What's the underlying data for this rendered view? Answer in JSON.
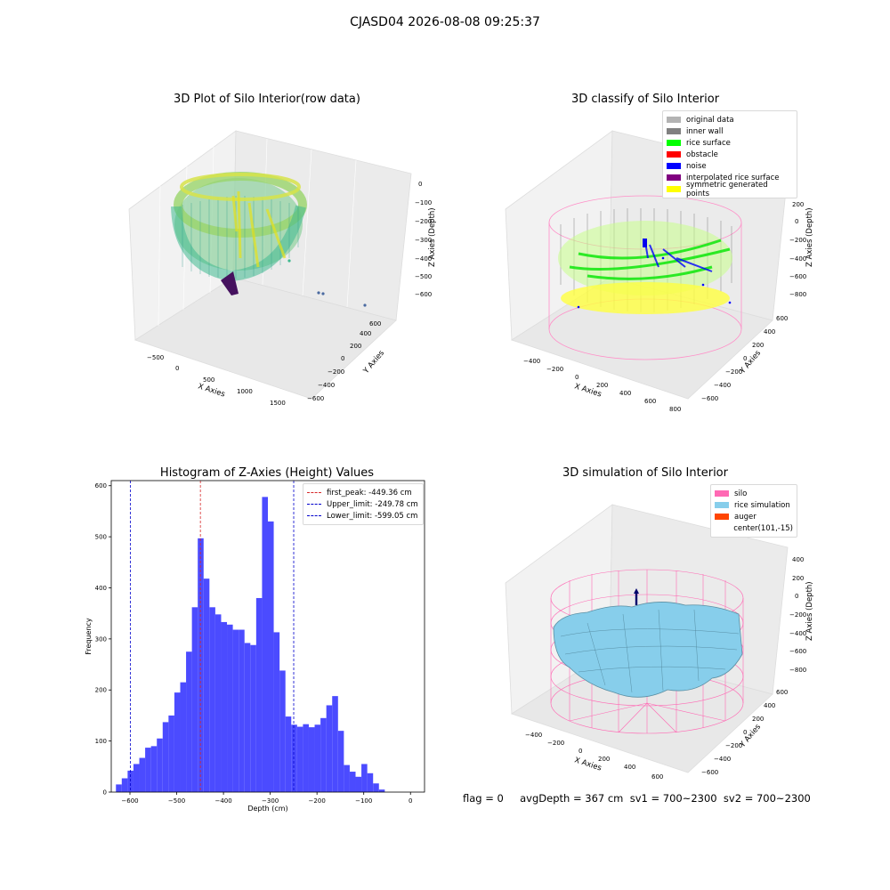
{
  "suptitle": "CJASD04 2026-08-08 09:25:37",
  "panels": {
    "raw": {
      "title": "3D Plot of Silo Interior(row data)",
      "xlabel": "X Axies",
      "ylabel": "Y Axies",
      "zlabel": "Z Axies (Depth)",
      "xticks": [
        "−500",
        "0",
        "500",
        "1000",
        "1500"
      ],
      "yticks": [
        "600",
        "400",
        "200",
        "0",
        "−200",
        "−400",
        "−600"
      ],
      "zticks": [
        "0",
        "−100",
        "−200",
        "−300",
        "−400",
        "−500",
        "−600"
      ]
    },
    "classify": {
      "title": "3D classify of Silo Interior",
      "xlabel": "X Axies",
      "ylabel": "Y Axies",
      "zlabel": "Z Axies (Depth)",
      "xticks": [
        "−400",
        "−200",
        "0",
        "200",
        "400",
        "600",
        "800"
      ],
      "yticks": [
        "600",
        "400",
        "200",
        "0",
        "−200",
        "−400",
        "−600"
      ],
      "zticks": [
        "200",
        "0",
        "−200",
        "−400",
        "−600",
        "−800"
      ],
      "legend": [
        {
          "label": "original data",
          "color": "#b3b3b3"
        },
        {
          "label": "inner wall",
          "color": "#808080"
        },
        {
          "label": "rice surface",
          "color": "#00ff00"
        },
        {
          "label": "obstacle",
          "color": "#ff0000"
        },
        {
          "label": "noise",
          "color": "#0000ff"
        },
        {
          "label": "interpolated rice surface",
          "color": "#800080"
        },
        {
          "label": "symmetric generated points",
          "color": "#ffff00"
        }
      ]
    },
    "simulation": {
      "title": "3D simulation of Silo Interior",
      "xlabel": "X Axies",
      "ylabel": "Y Axies",
      "zlabel": "Z Axies (Depth)",
      "xticks": [
        "−400",
        "−200",
        "0",
        "200",
        "400",
        "600"
      ],
      "yticks": [
        "600",
        "400",
        "200",
        "0",
        "−200",
        "−400",
        "−600"
      ],
      "zticks": [
        "400",
        "200",
        "0",
        "−200",
        "−400",
        "−600",
        "−800"
      ],
      "legend": [
        {
          "label": "silo",
          "color": "#ff69b4"
        },
        {
          "label": "rice simulation",
          "color": "#87ceeb"
        },
        {
          "label": "auger",
          "color": "#ff4500"
        },
        {
          "label": "center(101,-15)",
          "color": ""
        }
      ]
    }
  },
  "chart_data": {
    "type": "bar",
    "title": "Histogram of Z-Axies (Height) Values",
    "xlabel": "Depth (cm)",
    "ylabel": "Frequency",
    "xlim": [
      -640,
      30
    ],
    "ylim": [
      0,
      610
    ],
    "xticks": [
      -600,
      -500,
      -400,
      -300,
      -200,
      -100,
      0
    ],
    "yticks": [
      0,
      100,
      200,
      300,
      400,
      500,
      600
    ],
    "bin_start": -630,
    "bin_width": 12.5,
    "values": [
      15,
      27,
      42,
      55,
      67,
      87,
      90,
      105,
      137,
      150,
      195,
      215,
      275,
      362,
      497,
      418,
      362,
      348,
      333,
      328,
      318,
      318,
      292,
      288,
      380,
      578,
      530,
      313,
      238,
      148,
      132,
      128,
      133,
      127,
      132,
      145,
      170,
      188,
      120,
      53,
      40,
      30,
      55,
      37,
      17,
      5
    ],
    "color": "#4b4bff",
    "vlines": [
      {
        "label": "first_peak: -449.36 cm",
        "x": -449.36,
        "color": "#d62728"
      },
      {
        "label": "Upper_limit: -249.78 cm",
        "x": -249.78,
        "color": "#0000cc"
      },
      {
        "label": "Lower_limit: -599.05 cm",
        "x": -599.05,
        "color": "#0000cc"
      }
    ],
    "legend_position": "top-right"
  },
  "footer": "flag = 0     avgDepth = 367 cm  sv1 = 700~2300  sv2 = 700~2300"
}
